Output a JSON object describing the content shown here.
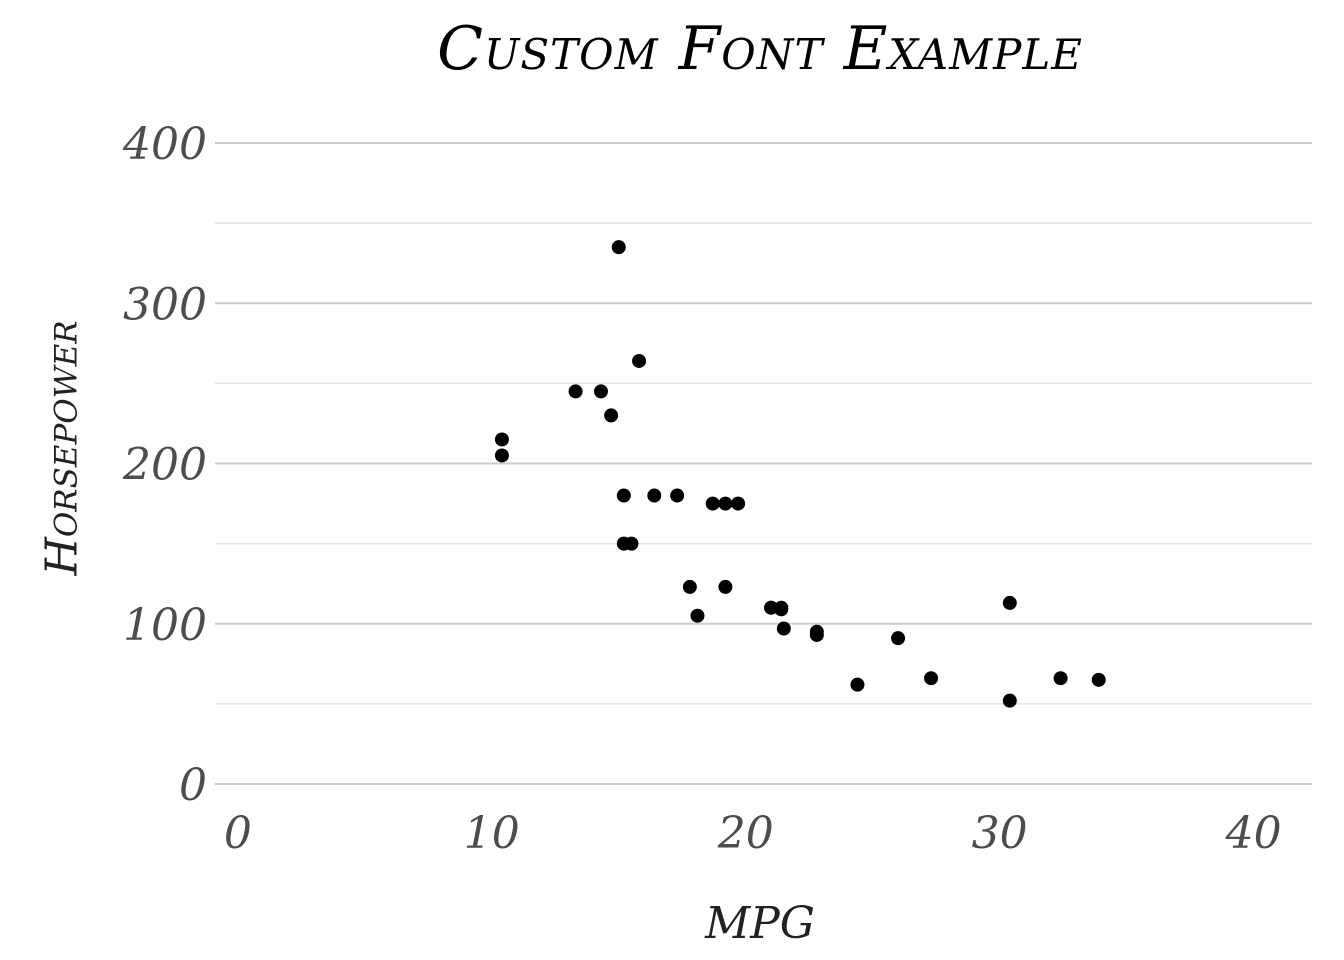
{
  "chart_data": {
    "type": "scatter",
    "title": "Custom Font Example",
    "xlabel": "MPG",
    "ylabel": "Horsepower",
    "xlim": [
      -0.9,
      42.3
    ],
    "ylim": [
      0,
      400
    ],
    "x_ticks": [
      "0",
      "10",
      "20",
      "30",
      "40"
    ],
    "y_ticks": [
      "0",
      "100",
      "200",
      "300",
      "400"
    ],
    "grid": true,
    "point_color": "#000000",
    "points": [
      {
        "x": 21.0,
        "y": 110
      },
      {
        "x": 21.0,
        "y": 110
      },
      {
        "x": 22.8,
        "y": 93
      },
      {
        "x": 21.4,
        "y": 110
      },
      {
        "x": 18.7,
        "y": 175
      },
      {
        "x": 18.1,
        "y": 105
      },
      {
        "x": 14.3,
        "y": 245
      },
      {
        "x": 24.4,
        "y": 62
      },
      {
        "x": 22.8,
        "y": 95
      },
      {
        "x": 19.2,
        "y": 123
      },
      {
        "x": 17.8,
        "y": 123
      },
      {
        "x": 16.4,
        "y": 180
      },
      {
        "x": 17.3,
        "y": 180
      },
      {
        "x": 15.2,
        "y": 180
      },
      {
        "x": 10.4,
        "y": 205
      },
      {
        "x": 10.4,
        "y": 215
      },
      {
        "x": 14.7,
        "y": 230
      },
      {
        "x": 32.4,
        "y": 66
      },
      {
        "x": 30.4,
        "y": 52
      },
      {
        "x": 33.9,
        "y": 65
      },
      {
        "x": 21.5,
        "y": 97
      },
      {
        "x": 15.5,
        "y": 150
      },
      {
        "x": 15.2,
        "y": 150
      },
      {
        "x": 13.3,
        "y": 245
      },
      {
        "x": 19.2,
        "y": 175
      },
      {
        "x": 27.3,
        "y": 66
      },
      {
        "x": 26.0,
        "y": 91
      },
      {
        "x": 30.4,
        "y": 113
      },
      {
        "x": 15.8,
        "y": 264
      },
      {
        "x": 19.7,
        "y": 175
      },
      {
        "x": 15.0,
        "y": 335
      },
      {
        "x": 21.4,
        "y": 109
      }
    ]
  }
}
